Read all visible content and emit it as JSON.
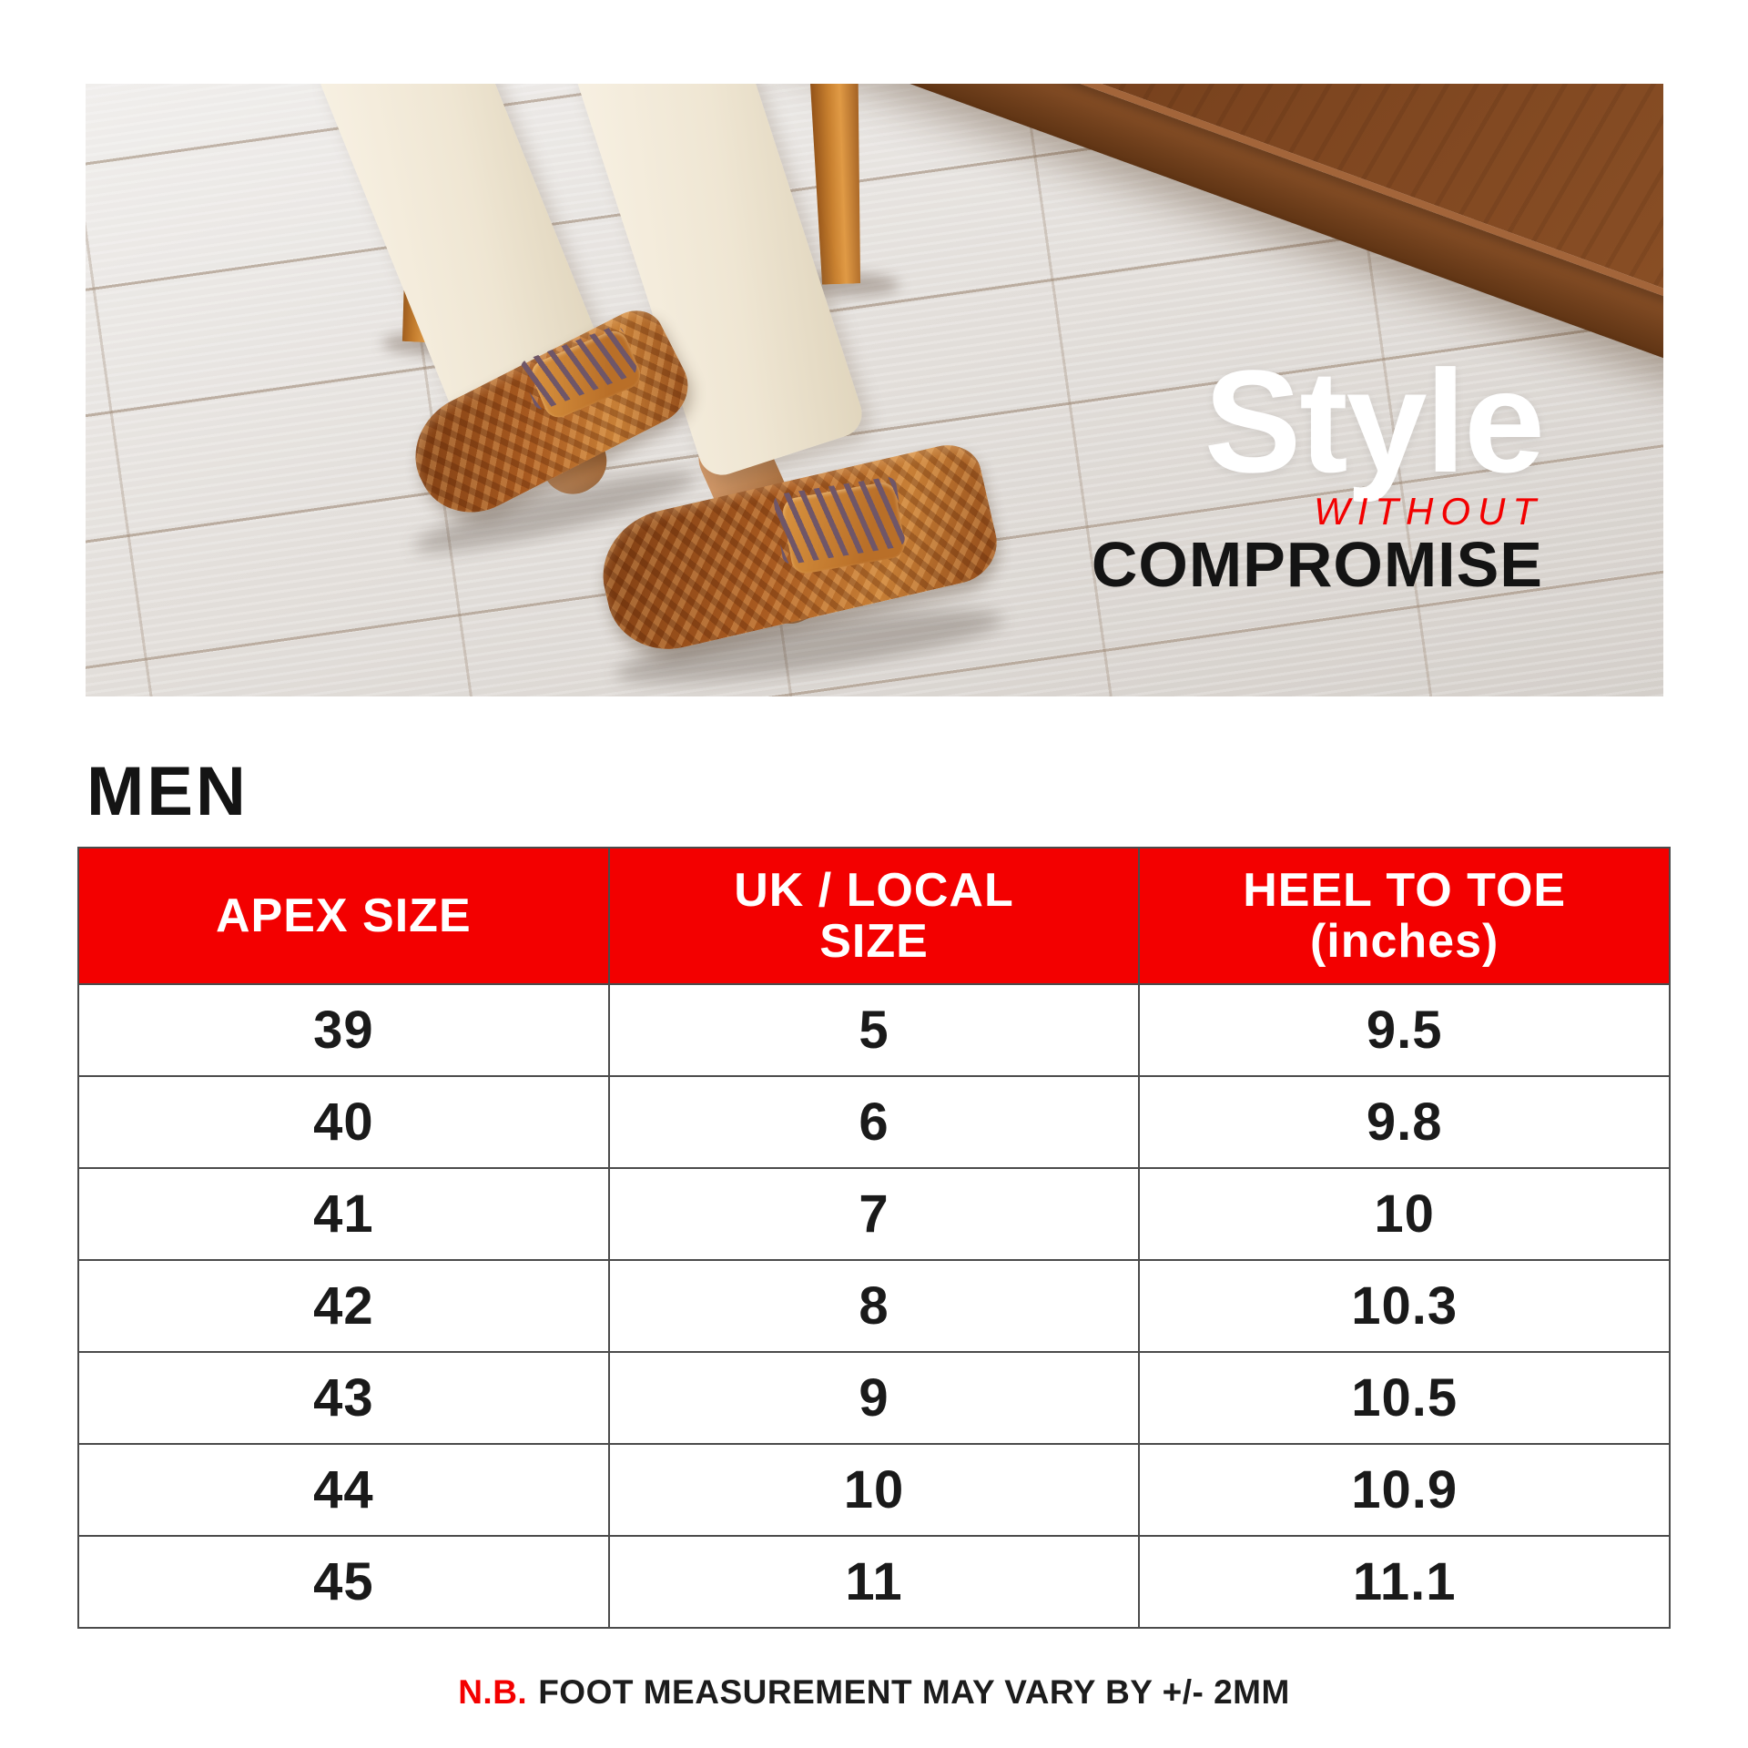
{
  "hero": {
    "headline_top": "Style",
    "headline_mid": "WITHOUT",
    "headline_bottom": "COMPROMISE"
  },
  "section_title": "MEN",
  "table": {
    "headers": [
      {
        "line1": "APEX SIZE",
        "line2": ""
      },
      {
        "line1": "UK / LOCAL",
        "line2": "SIZE"
      },
      {
        "line1": "HEEL TO TOE",
        "line2": "(inches)"
      }
    ],
    "rows": [
      {
        "apex": "39",
        "uk": "5",
        "heel": "9.5"
      },
      {
        "apex": "40",
        "uk": "6",
        "heel": "9.8"
      },
      {
        "apex": "41",
        "uk": "7",
        "heel": "10"
      },
      {
        "apex": "42",
        "uk": "8",
        "heel": "10.3"
      },
      {
        "apex": "43",
        "uk": "9",
        "heel": "10.5"
      },
      {
        "apex": "44",
        "uk": "10",
        "heel": "10.9"
      },
      {
        "apex": "45",
        "uk": "11",
        "heel": "11.1"
      }
    ]
  },
  "footnote": {
    "prefix": "N.B.",
    "text": "FOOT MEASUREMENT MAY VARY BY +/- 2MM"
  },
  "colors": {
    "accent_red": "#f30000",
    "headline_white": "#ffffff",
    "text_black": "#141414"
  }
}
